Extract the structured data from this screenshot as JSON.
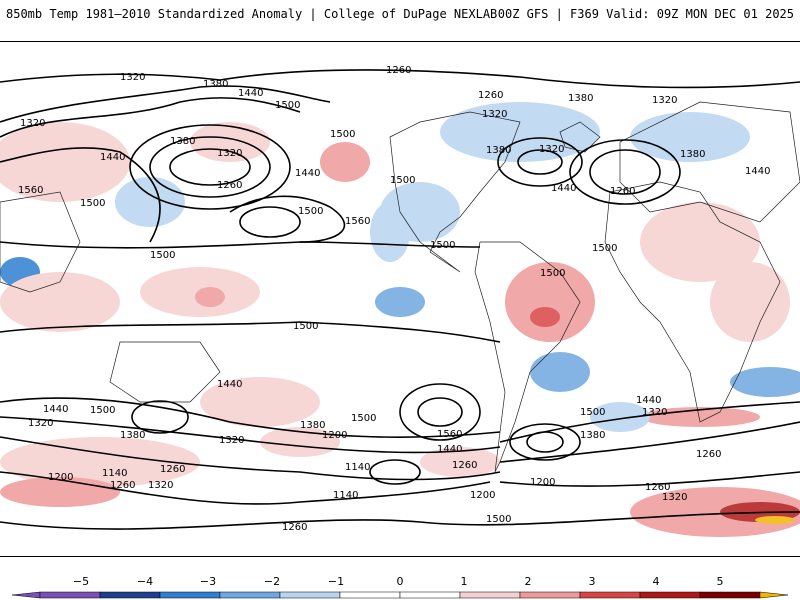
{
  "header": {
    "title": "850mb Temp 1981–2010 Standardized Anomaly | College of DuPage NEXLAB",
    "valid": "00Z GFS | F369 Valid: 09Z MON DEC 01 2025"
  },
  "colors": {
    "neg5": "#7b4fb3",
    "neg4": "#1f3f8f",
    "neg3": "#2f7fd0",
    "neg2": "#6fa8e0",
    "neg1": "#b8d4f0",
    "zero": "#ffffff",
    "pos1": "#f6d0d0",
    "pos2": "#ee9a9a",
    "pos3": "#d94545",
    "pos4": "#b01818",
    "pos5": "#7a0000",
    "pos6": "#f2b600"
  },
  "colorbar": {
    "ticks": [
      "−5",
      "−4",
      "−3",
      "−2",
      "−1",
      "0",
      "1",
      "2",
      "3",
      "4",
      "5"
    ]
  },
  "contour_labels": [
    {
      "text": "1320",
      "id": "c1"
    },
    {
      "text": "1260",
      "id": "c2"
    },
    {
      "text": "1380",
      "id": "c3"
    },
    {
      "text": "1440",
      "id": "c4"
    },
    {
      "text": "1500",
      "id": "c5"
    },
    {
      "text": "1320",
      "id": "c6"
    },
    {
      "text": "1380",
      "id": "c7"
    },
    {
      "text": "1320",
      "id": "c8"
    },
    {
      "text": "1260",
      "id": "c9"
    },
    {
      "text": "1500",
      "id": "c10"
    },
    {
      "text": "1440",
      "id": "c11"
    },
    {
      "text": "1560",
      "id": "c12"
    },
    {
      "text": "1500",
      "id": "c13"
    },
    {
      "text": "1440",
      "id": "c14"
    },
    {
      "text": "1560",
      "id": "c15"
    },
    {
      "text": "1500",
      "id": "c16"
    },
    {
      "text": "1500",
      "id": "c17"
    },
    {
      "text": "1500",
      "id": "c18"
    },
    {
      "text": "1260",
      "id": "c19"
    },
    {
      "text": "1320",
      "id": "c20"
    },
    {
      "text": "1380",
      "id": "c21"
    },
    {
      "text": "1380",
      "id": "c22"
    },
    {
      "text": "1320",
      "id": "c23"
    },
    {
      "text": "1440",
      "id": "c24"
    },
    {
      "text": "1260",
      "id": "c25"
    },
    {
      "text": "1320",
      "id": "c26"
    },
    {
      "text": "1380",
      "id": "c27"
    },
    {
      "text": "1440",
      "id": "c28"
    },
    {
      "text": "1500",
      "id": "c29"
    },
    {
      "text": "1500",
      "id": "c30"
    },
    {
      "text": "1500",
      "id": "c31"
    },
    {
      "text": "1500",
      "id": "c32"
    },
    {
      "text": "1440",
      "id": "c33"
    },
    {
      "text": "1440",
      "id": "c34"
    },
    {
      "text": "1500",
      "id": "c35"
    },
    {
      "text": "1320",
      "id": "c36"
    },
    {
      "text": "1380",
      "id": "c37"
    },
    {
      "text": "1320",
      "id": "c38"
    },
    {
      "text": "1380",
      "id": "c39"
    },
    {
      "text": "1200",
      "id": "c40"
    },
    {
      "text": "1500",
      "id": "c41"
    },
    {
      "text": "1560",
      "id": "c42"
    },
    {
      "text": "1440",
      "id": "c43"
    },
    {
      "text": "1140",
      "id": "c44"
    },
    {
      "text": "1260",
      "id": "c45"
    },
    {
      "text": "1140",
      "id": "c46"
    },
    {
      "text": "1200",
      "id": "c47"
    },
    {
      "text": "1260",
      "id": "c48"
    },
    {
      "text": "1320",
      "id": "c49"
    },
    {
      "text": "1140",
      "id": "c50"
    },
    {
      "text": "1200",
      "id": "c51"
    },
    {
      "text": "1260",
      "id": "c52"
    },
    {
      "text": "1200",
      "id": "c53"
    },
    {
      "text": "1500",
      "id": "c54"
    },
    {
      "text": "1440",
      "id": "c55"
    },
    {
      "text": "1320",
      "id": "c56"
    },
    {
      "text": "1380",
      "id": "c57"
    },
    {
      "text": "1260",
      "id": "c58"
    },
    {
      "text": "1260",
      "id": "c59"
    },
    {
      "text": "1320",
      "id": "c60"
    },
    {
      "text": "1260",
      "id": "c61"
    },
    {
      "text": "1500",
      "id": "c62"
    }
  ]
}
